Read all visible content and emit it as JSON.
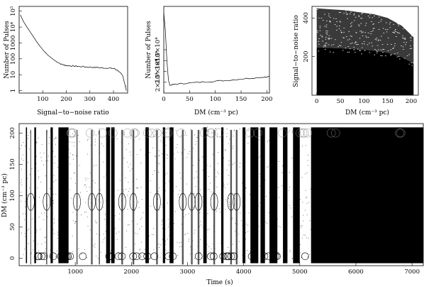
{
  "chart_data": [
    {
      "id": "snr-hist",
      "type": "line",
      "xlabel": "Signal−to−noise ratio",
      "ylabel": "Number of Pulses",
      "xlim": [
        0,
        460
      ],
      "yscale": "log",
      "ylim": [
        0.7,
        200000
      ],
      "xticks": [
        100,
        200,
        300,
        400
      ],
      "yticks": [
        {
          "value": 1,
          "label": "1"
        },
        {
          "value": 10,
          "label": "10"
        },
        {
          "value": 100,
          "label": "100"
        },
        {
          "value": 1000,
          "label": "1000"
        },
        {
          "value": 10000,
          "label": "10⁴"
        },
        {
          "value": 100000,
          "label": "10⁵"
        }
      ],
      "series": [
        {
          "x": [
            5,
            10,
            20,
            40,
            60,
            80,
            100,
            120,
            150,
            180,
            200,
            230,
            260,
            300,
            340,
            370,
            400,
            420,
            440,
            450,
            455
          ],
          "y": [
            60000,
            40000,
            20000,
            7000,
            2500,
            900,
            380,
            180,
            80,
            45,
            38,
            35,
            33,
            30,
            28,
            26,
            25,
            18,
            8,
            2,
            1
          ]
        }
      ]
    },
    {
      "id": "dm-hist",
      "type": "line",
      "xlabel": "DM (cm⁻³ pc)",
      "ylabel": "Number of Pulses",
      "xlim": [
        0,
        205
      ],
      "ylim": [
        15000,
        55000
      ],
      "xticks": [
        0,
        50,
        100,
        150,
        200
      ],
      "yticks": [
        {
          "value": 20000,
          "label": "2×10⁴"
        },
        {
          "value": 25000,
          "label": "2.5×10⁴"
        },
        {
          "value": 30000,
          "label": "3×10⁴"
        },
        {
          "value": 35000,
          "label": "3.5×10⁴"
        }
      ],
      "series": [
        {
          "x": [
            0,
            3,
            6,
            9,
            12,
            20,
            40,
            70,
            100,
            130,
            160,
            190,
            205
          ],
          "y": [
            52000,
            44000,
            30000,
            21000,
            18500,
            19000,
            19500,
            20000,
            20500,
            21000,
            21700,
            22300,
            22600
          ]
        }
      ]
    },
    {
      "id": "snr-vs-dm",
      "type": "scatter",
      "xlabel": "DM (cm⁻³ pc)",
      "ylabel": "Signal−to−noise ratio",
      "xlim": [
        -10,
        215
      ],
      "ylim": [
        0,
        460
      ],
      "xticks": [
        0,
        50,
        100,
        150,
        200
      ],
      "yticks": [
        200,
        400
      ],
      "envelope_x": [
        0,
        30,
        60,
        90,
        120,
        150,
        180,
        205
      ],
      "envelope_y": [
        450,
        445,
        440,
        430,
        420,
        400,
        360,
        300
      ]
    },
    {
      "id": "dm-vs-time",
      "type": "scatter",
      "xlabel": "Time (s)",
      "ylabel": "DM (cm⁻³ pc)",
      "xlim": [
        0,
        7200
      ],
      "ylim": [
        -12,
        215
      ],
      "xticks": [
        1000,
        2000,
        3000,
        4000,
        5000,
        6000,
        7000
      ],
      "yticks": [
        0,
        50,
        100,
        150,
        200
      ],
      "dense_bands": [
        [
          120,
          140
        ],
        [
          270,
          300
        ],
        [
          560,
          600
        ],
        [
          700,
          880
        ],
        [
          1550,
          1620
        ],
        [
          1640,
          1700
        ],
        [
          2250,
          2310
        ],
        [
          2560,
          2600
        ],
        [
          2680,
          2750
        ],
        [
          3280,
          3340
        ],
        [
          3600,
          3640
        ],
        [
          3980,
          4030
        ],
        [
          4120,
          4260
        ],
        [
          4300,
          4380
        ],
        [
          4460,
          4600
        ],
        [
          4700,
          4780
        ],
        [
          4880,
          5000
        ],
        [
          5200,
          7200
        ]
      ],
      "narrow_bands": [
        [
          200,
          215
        ],
        [
          480,
          500
        ],
        [
          1020,
          1040
        ],
        [
          1280,
          1310
        ],
        [
          1420,
          1440
        ],
        [
          1820,
          1850
        ],
        [
          2020,
          2050
        ],
        [
          2440,
          2470
        ],
        [
          2900,
          2930
        ],
        [
          3060,
          3090
        ],
        [
          3180,
          3210
        ],
        [
          3460,
          3490
        ],
        [
          3760,
          3790
        ],
        [
          3860,
          3890
        ]
      ]
    }
  ]
}
